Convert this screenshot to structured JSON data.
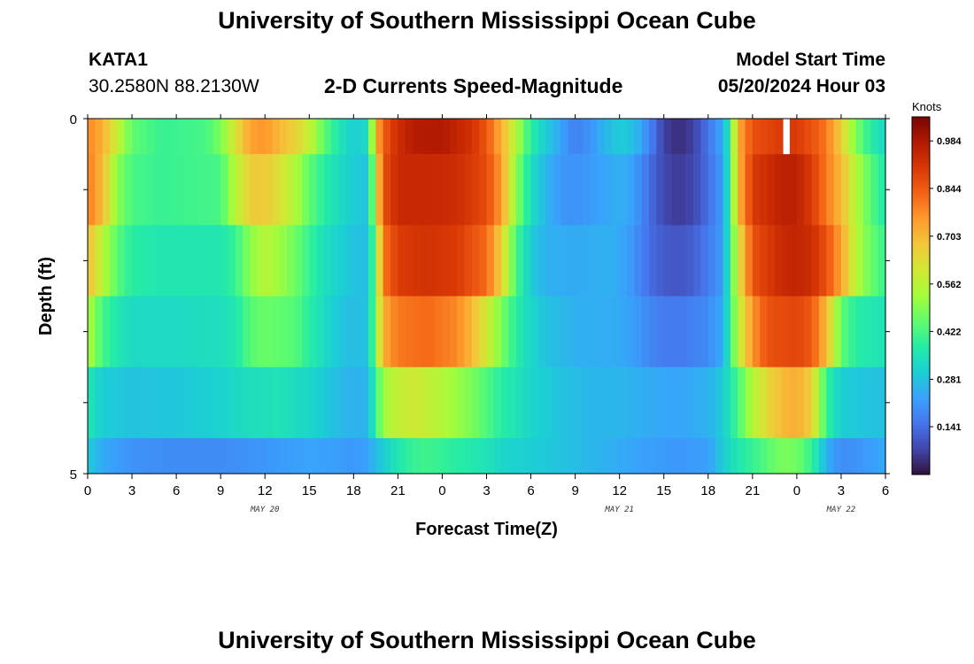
{
  "header": {
    "title": "University of Southern Mississippi Ocean Cube",
    "station_id": "KATA1",
    "coords": "30.2580N  88.2130W",
    "subtitle": "2-D Currents Speed-Magnitude",
    "model_start_label": "Model Start Time",
    "model_start_time": "05/20/2024 Hour 03"
  },
  "footer": {
    "title": "University of Southern Mississippi Ocean Cube"
  },
  "chart_data": {
    "type": "heatmap",
    "xlabel": "Forecast Time(Z)",
    "ylabel": "Depth (ft)",
    "colorbar_label": "Knots",
    "x_tick_labels": [
      "0",
      "3",
      "6",
      "9",
      "12",
      "15",
      "18",
      "21",
      "0",
      "3",
      "6",
      "9",
      "12",
      "15",
      "18",
      "21",
      "0",
      "3",
      "6"
    ],
    "x_hours_since_start": [
      0,
      3,
      6,
      9,
      12,
      15,
      18,
      21,
      24,
      27,
      30,
      33,
      36,
      39,
      42,
      45,
      48,
      51,
      54
    ],
    "date_labels": [
      {
        "text": "MAY 20",
        "hour": 12
      },
      {
        "text": "MAY 21",
        "hour": 36
      },
      {
        "text": "MAY 22",
        "hour": 51
      }
    ],
    "y_tick_labels": [
      "0",
      "5"
    ],
    "ylim": [
      0,
      5
    ],
    "colorbar_ticks": [
      "0.984",
      "0.844",
      "0.703",
      "0.562",
      "0.422",
      "0.281",
      "0.141"
    ],
    "colorbar_tick_values": [
      0.984,
      0.844,
      0.703,
      0.562,
      0.422,
      0.281,
      0.141
    ],
    "value_range": [
      0.0,
      1.055
    ],
    "depth_layers": [
      {
        "depth_top": 0.0,
        "depth_bottom": 0.5,
        "anchors": [
          [
            0,
            0.78
          ],
          [
            1,
            0.72
          ],
          [
            2,
            0.58
          ],
          [
            3,
            0.45
          ],
          [
            5,
            0.4
          ],
          [
            8,
            0.42
          ],
          [
            9,
            0.48
          ],
          [
            10,
            0.62
          ],
          [
            11,
            0.74
          ],
          [
            12,
            0.76
          ],
          [
            13,
            0.7
          ],
          [
            14,
            0.66
          ],
          [
            15,
            0.58
          ],
          [
            16,
            0.45
          ],
          [
            17,
            0.36
          ],
          [
            18,
            0.3
          ],
          [
            19,
            0.33
          ],
          [
            19.5,
            0.7
          ],
          [
            20,
            0.84
          ],
          [
            21,
            0.93
          ],
          [
            22,
            0.97
          ],
          [
            24,
            0.98
          ],
          [
            26,
            0.92
          ],
          [
            27,
            0.85
          ],
          [
            28,
            0.72
          ],
          [
            29,
            0.55
          ],
          [
            30,
            0.38
          ],
          [
            31,
            0.3
          ],
          [
            32,
            0.23
          ],
          [
            33,
            0.17
          ],
          [
            34,
            0.2
          ],
          [
            35,
            0.26
          ],
          [
            36,
            0.3
          ],
          [
            37,
            0.27
          ],
          [
            38,
            0.18
          ],
          [
            39,
            0.07
          ],
          [
            40,
            0.04
          ],
          [
            41,
            0.07
          ],
          [
            42,
            0.15
          ],
          [
            43,
            0.24
          ],
          [
            43.5,
            0.4
          ],
          [
            44,
            0.72
          ],
          [
            45,
            0.86
          ],
          [
            46,
            0.88
          ],
          [
            47,
            0.9
          ],
          [
            48,
            0.9
          ],
          [
            49,
            0.86
          ],
          [
            50,
            0.8
          ],
          [
            51,
            0.66
          ],
          [
            52,
            0.48
          ],
          [
            53,
            0.38
          ],
          [
            54,
            0.32
          ]
        ]
      },
      {
        "depth_top": 0.5,
        "depth_bottom": 1.5,
        "anchors": [
          [
            0,
            0.8
          ],
          [
            1,
            0.7
          ],
          [
            2,
            0.5
          ],
          [
            3,
            0.42
          ],
          [
            5,
            0.4
          ],
          [
            9,
            0.42
          ],
          [
            10,
            0.56
          ],
          [
            11,
            0.66
          ],
          [
            12,
            0.67
          ],
          [
            13,
            0.62
          ],
          [
            14,
            0.55
          ],
          [
            15,
            0.45
          ],
          [
            16,
            0.38
          ],
          [
            17,
            0.33
          ],
          [
            18,
            0.3
          ],
          [
            19,
            0.28
          ],
          [
            19.5,
            0.6
          ],
          [
            20,
            0.86
          ],
          [
            21,
            0.94
          ],
          [
            23,
            0.94
          ],
          [
            25,
            0.93
          ],
          [
            27,
            0.87
          ],
          [
            28,
            0.75
          ],
          [
            29,
            0.5
          ],
          [
            30,
            0.34
          ],
          [
            31,
            0.26
          ],
          [
            32,
            0.21
          ],
          [
            33,
            0.2
          ],
          [
            35,
            0.23
          ],
          [
            36,
            0.25
          ],
          [
            37,
            0.22
          ],
          [
            38,
            0.14
          ],
          [
            39,
            0.08
          ],
          [
            40,
            0.06
          ],
          [
            41,
            0.08
          ],
          [
            42,
            0.14
          ],
          [
            43,
            0.22
          ],
          [
            43.5,
            0.4
          ],
          [
            44,
            0.7
          ],
          [
            45,
            0.9
          ],
          [
            47,
            0.96
          ],
          [
            48,
            0.96
          ],
          [
            49,
            0.9
          ],
          [
            50,
            0.8
          ],
          [
            51,
            0.7
          ],
          [
            52,
            0.55
          ],
          [
            53,
            0.44
          ],
          [
            54,
            0.36
          ]
        ]
      },
      {
        "depth_top": 1.5,
        "depth_bottom": 2.5,
        "anchors": [
          [
            0,
            0.7
          ],
          [
            1,
            0.56
          ],
          [
            2,
            0.44
          ],
          [
            3,
            0.38
          ],
          [
            5,
            0.36
          ],
          [
            9,
            0.36
          ],
          [
            10,
            0.4
          ],
          [
            11,
            0.5
          ],
          [
            12,
            0.56
          ],
          [
            13,
            0.52
          ],
          [
            14,
            0.47
          ],
          [
            15,
            0.4
          ],
          [
            16,
            0.34
          ],
          [
            17,
            0.31
          ],
          [
            18,
            0.28
          ],
          [
            19,
            0.27
          ],
          [
            19.5,
            0.5
          ],
          [
            20,
            0.8
          ],
          [
            21,
            0.9
          ],
          [
            23,
            0.92
          ],
          [
            25,
            0.9
          ],
          [
            27,
            0.82
          ],
          [
            28,
            0.66
          ],
          [
            29,
            0.42
          ],
          [
            30,
            0.3
          ],
          [
            31,
            0.25
          ],
          [
            33,
            0.24
          ],
          [
            35,
            0.25
          ],
          [
            36,
            0.24
          ],
          [
            37,
            0.2
          ],
          [
            38,
            0.14
          ],
          [
            39,
            0.11
          ],
          [
            40,
            0.1
          ],
          [
            41,
            0.12
          ],
          [
            42,
            0.16
          ],
          [
            43,
            0.22
          ],
          [
            43.5,
            0.4
          ],
          [
            44,
            0.6
          ],
          [
            45,
            0.86
          ],
          [
            47,
            0.94
          ],
          [
            48,
            0.95
          ],
          [
            49,
            0.93
          ],
          [
            50,
            0.86
          ],
          [
            51,
            0.74
          ],
          [
            52,
            0.56
          ],
          [
            53,
            0.46
          ],
          [
            54,
            0.4
          ]
        ]
      },
      {
        "depth_top": 2.5,
        "depth_bottom": 3.5,
        "anchors": [
          [
            0,
            0.55
          ],
          [
            1,
            0.42
          ],
          [
            2,
            0.36
          ],
          [
            3,
            0.33
          ],
          [
            6,
            0.33
          ],
          [
            9,
            0.34
          ],
          [
            10,
            0.36
          ],
          [
            11,
            0.44
          ],
          [
            12,
            0.46
          ],
          [
            14,
            0.44
          ],
          [
            15,
            0.38
          ],
          [
            16,
            0.33
          ],
          [
            17,
            0.29
          ],
          [
            18,
            0.27
          ],
          [
            19,
            0.28
          ],
          [
            19.5,
            0.5
          ],
          [
            20,
            0.72
          ],
          [
            21,
            0.8
          ],
          [
            23,
            0.82
          ],
          [
            25,
            0.78
          ],
          [
            26,
            0.7
          ],
          [
            27,
            0.6
          ],
          [
            28,
            0.48
          ],
          [
            29,
            0.38
          ],
          [
            30,
            0.32
          ],
          [
            31,
            0.28
          ],
          [
            33,
            0.25
          ],
          [
            36,
            0.24
          ],
          [
            37,
            0.22
          ],
          [
            38,
            0.18
          ],
          [
            39,
            0.16
          ],
          [
            40,
            0.16
          ],
          [
            41,
            0.17
          ],
          [
            42,
            0.19
          ],
          [
            43,
            0.24
          ],
          [
            43.5,
            0.4
          ],
          [
            44,
            0.56
          ],
          [
            45,
            0.76
          ],
          [
            46,
            0.86
          ],
          [
            48,
            0.88
          ],
          [
            49,
            0.85
          ],
          [
            50,
            0.7
          ],
          [
            51,
            0.45
          ],
          [
            52,
            0.38
          ],
          [
            53,
            0.36
          ],
          [
            54,
            0.35
          ]
        ]
      },
      {
        "depth_top": 3.5,
        "depth_bottom": 4.5,
        "anchors": [
          [
            0,
            0.36
          ],
          [
            1,
            0.3
          ],
          [
            3,
            0.28
          ],
          [
            6,
            0.29
          ],
          [
            9,
            0.31
          ],
          [
            11,
            0.34
          ],
          [
            13,
            0.35
          ],
          [
            15,
            0.32
          ],
          [
            17,
            0.27
          ],
          [
            18,
            0.25
          ],
          [
            19,
            0.26
          ],
          [
            19.5,
            0.4
          ],
          [
            20,
            0.52
          ],
          [
            21,
            0.58
          ],
          [
            22,
            0.6
          ],
          [
            24,
            0.55
          ],
          [
            26,
            0.48
          ],
          [
            27,
            0.43
          ],
          [
            28,
            0.38
          ],
          [
            30,
            0.32
          ],
          [
            32,
            0.28
          ],
          [
            34,
            0.26
          ],
          [
            36,
            0.26
          ],
          [
            38,
            0.24
          ],
          [
            40,
            0.23
          ],
          [
            42,
            0.25
          ],
          [
            43,
            0.3
          ],
          [
            44,
            0.42
          ],
          [
            45,
            0.55
          ],
          [
            46,
            0.64
          ],
          [
            47,
            0.7
          ],
          [
            48,
            0.72
          ],
          [
            49,
            0.66
          ],
          [
            50,
            0.4
          ],
          [
            51,
            0.3
          ],
          [
            53,
            0.28
          ],
          [
            54,
            0.28
          ]
        ]
      },
      {
        "depth_top": 4.5,
        "depth_bottom": 5.0,
        "anchors": [
          [
            0,
            0.3
          ],
          [
            1,
            0.24
          ],
          [
            3,
            0.2
          ],
          [
            6,
            0.19
          ],
          [
            9,
            0.19
          ],
          [
            12,
            0.21
          ],
          [
            15,
            0.23
          ],
          [
            17,
            0.22
          ],
          [
            18,
            0.21
          ],
          [
            19,
            0.23
          ],
          [
            20,
            0.3
          ],
          [
            21,
            0.36
          ],
          [
            22,
            0.4
          ],
          [
            23,
            0.41
          ],
          [
            25,
            0.38
          ],
          [
            27,
            0.35
          ],
          [
            28,
            0.32
          ],
          [
            30,
            0.3
          ],
          [
            32,
            0.28
          ],
          [
            34,
            0.26
          ],
          [
            36,
            0.24
          ],
          [
            38,
            0.22
          ],
          [
            40,
            0.21
          ],
          [
            42,
            0.22
          ],
          [
            43,
            0.3
          ],
          [
            44,
            0.36
          ],
          [
            45,
            0.4
          ],
          [
            46,
            0.44
          ],
          [
            47,
            0.48
          ],
          [
            48,
            0.47
          ],
          [
            49,
            0.4
          ],
          [
            50,
            0.25
          ],
          [
            51,
            0.19
          ],
          [
            52,
            0.2
          ],
          [
            53,
            0.22
          ],
          [
            54,
            0.24
          ]
        ]
      }
    ],
    "missing_cells": [
      {
        "hour": 47.3,
        "depth_top": 0.0,
        "depth_bottom": 0.5
      }
    ],
    "colormap_stops": [
      "#30123b",
      "#4145ab",
      "#4675ed",
      "#39a2fc",
      "#1bcfd4",
      "#24eca6",
      "#61fc6c",
      "#a4fc3b",
      "#d1e834",
      "#f3c63a",
      "#fe9b2d",
      "#f36315",
      "#d93806",
      "#b11901",
      "#7a0403"
    ]
  }
}
